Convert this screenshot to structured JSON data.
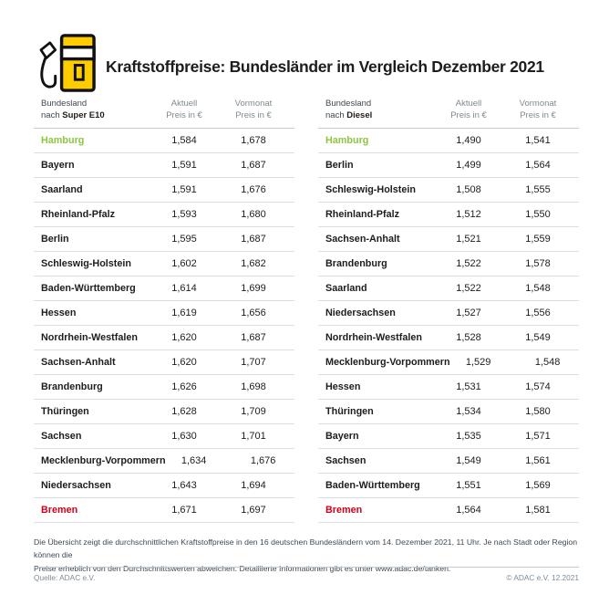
{
  "header": {
    "title": "Kraftstoffpreise: Bundesländer im Vergleich Dezember 2021",
    "icon": "fuel-pump-icon"
  },
  "colors": {
    "accent_yellow": "#FFCC00",
    "cheapest_green": "#8DC63F",
    "most_expensive_red": "#D0021B"
  },
  "tables": [
    {
      "header": {
        "col1_line1": "Bundesland",
        "col1_prefix": "nach ",
        "col1_fuel": "Super E10",
        "col2_line1": "Aktuell",
        "col2_line2": "Preis in €",
        "col3_line1": "Vormonat",
        "col3_line2": "Preis in €"
      },
      "rows": [
        {
          "state": "Hamburg",
          "current": "1,584",
          "previous": "1,678",
          "highlight": "green"
        },
        {
          "state": "Bayern",
          "current": "1,591",
          "previous": "1,687",
          "highlight": ""
        },
        {
          "state": "Saarland",
          "current": "1,591",
          "previous": "1,676",
          "highlight": ""
        },
        {
          "state": "Rheinland-Pfalz",
          "current": "1,593",
          "previous": "1,680",
          "highlight": ""
        },
        {
          "state": "Berlin",
          "current": "1,595",
          "previous": "1,687",
          "highlight": ""
        },
        {
          "state": "Schleswig-Holstein",
          "current": "1,602",
          "previous": "1,682",
          "highlight": ""
        },
        {
          "state": "Baden-Württemberg",
          "current": "1,614",
          "previous": "1,699",
          "highlight": ""
        },
        {
          "state": "Hessen",
          "current": "1,619",
          "previous": "1,656",
          "highlight": ""
        },
        {
          "state": "Nordrhein-Westfalen",
          "current": "1,620",
          "previous": "1,687",
          "highlight": ""
        },
        {
          "state": "Sachsen-Anhalt",
          "current": "1,620",
          "previous": "1,707",
          "highlight": ""
        },
        {
          "state": "Brandenburg",
          "current": "1,626",
          "previous": "1,698",
          "highlight": ""
        },
        {
          "state": "Thüringen",
          "current": "1,628",
          "previous": "1,709",
          "highlight": ""
        },
        {
          "state": "Sachsen",
          "current": "1,630",
          "previous": "1,701",
          "highlight": ""
        },
        {
          "state": "Mecklenburg-Vorpommern",
          "current": "1,634",
          "previous": "1,676",
          "highlight": ""
        },
        {
          "state": "Niedersachsen",
          "current": "1,643",
          "previous": "1,694",
          "highlight": ""
        },
        {
          "state": "Bremen",
          "current": "1,671",
          "previous": "1,697",
          "highlight": "red"
        }
      ]
    },
    {
      "header": {
        "col1_line1": "Bundesland",
        "col1_prefix": "nach ",
        "col1_fuel": "Diesel",
        "col2_line1": "Aktuell",
        "col2_line2": "Preis in €",
        "col3_line1": "Vormonat",
        "col3_line2": "Preis in €"
      },
      "rows": [
        {
          "state": "Hamburg",
          "current": "1,490",
          "previous": "1,541",
          "highlight": "green"
        },
        {
          "state": "Berlin",
          "current": "1,499",
          "previous": "1,564",
          "highlight": ""
        },
        {
          "state": "Schleswig-Holstein",
          "current": "1,508",
          "previous": "1,555",
          "highlight": ""
        },
        {
          "state": "Rheinland-Pfalz",
          "current": "1,512",
          "previous": "1,550",
          "highlight": ""
        },
        {
          "state": "Sachsen-Anhalt",
          "current": "1,521",
          "previous": "1,559",
          "highlight": ""
        },
        {
          "state": "Brandenburg",
          "current": "1,522",
          "previous": "1,578",
          "highlight": ""
        },
        {
          "state": "Saarland",
          "current": "1,522",
          "previous": "1,548",
          "highlight": ""
        },
        {
          "state": "Niedersachsen",
          "current": "1,527",
          "previous": "1,556",
          "highlight": ""
        },
        {
          "state": "Nordrhein-Westfalen",
          "current": "1,528",
          "previous": "1,549",
          "highlight": ""
        },
        {
          "state": "Mecklenburg-Vorpommern",
          "current": "1,529",
          "previous": "1,548",
          "highlight": ""
        },
        {
          "state": "Hessen",
          "current": "1,531",
          "previous": "1,574",
          "highlight": ""
        },
        {
          "state": "Thüringen",
          "current": "1,534",
          "previous": "1,580",
          "highlight": ""
        },
        {
          "state": "Bayern",
          "current": "1,535",
          "previous": "1,571",
          "highlight": ""
        },
        {
          "state": "Sachsen",
          "current": "1,549",
          "previous": "1,561",
          "highlight": ""
        },
        {
          "state": "Baden-Württemberg",
          "current": "1,551",
          "previous": "1,569",
          "highlight": ""
        },
        {
          "state": "Bremen",
          "current": "1,564",
          "previous": "1,581",
          "highlight": "red"
        }
      ]
    }
  ],
  "footer": {
    "note_line1": "Die Übersicht zeigt die durchschnittlichen Kraftstoffpreise in den 16 deutschen Bundesländern vom 14. Dezember 2021, 11 Uhr. Je nach Stadt oder Region können die",
    "note_line2": "Preise erheblich von den Durchschnittswerten abweichen. Detaillierte Informationen gibt es unter www.adac.de/tanken.",
    "source": "Quelle: ADAC e.V.",
    "copyright": "© ADAC e.V. 12.2021"
  },
  "chart_data": [
    {
      "type": "table",
      "title": "Bundesland nach Super E10 — Preis in €",
      "columns": [
        "Bundesland",
        "Aktuell Preis in €",
        "Vormonat Preis in €"
      ],
      "rows": [
        [
          "Hamburg",
          1.584,
          1.678
        ],
        [
          "Bayern",
          1.591,
          1.687
        ],
        [
          "Saarland",
          1.591,
          1.676
        ],
        [
          "Rheinland-Pfalz",
          1.593,
          1.68
        ],
        [
          "Berlin",
          1.595,
          1.687
        ],
        [
          "Schleswig-Holstein",
          1.602,
          1.682
        ],
        [
          "Baden-Württemberg",
          1.614,
          1.699
        ],
        [
          "Hessen",
          1.619,
          1.656
        ],
        [
          "Nordrhein-Westfalen",
          1.62,
          1.687
        ],
        [
          "Sachsen-Anhalt",
          1.62,
          1.707
        ],
        [
          "Brandenburg",
          1.626,
          1.698
        ],
        [
          "Thüringen",
          1.628,
          1.709
        ],
        [
          "Sachsen",
          1.63,
          1.701
        ],
        [
          "Mecklenburg-Vorpommern",
          1.634,
          1.676
        ],
        [
          "Niedersachsen",
          1.643,
          1.694
        ],
        [
          "Bremen",
          1.671,
          1.697
        ]
      ],
      "annotations": {
        "cheapest": "Hamburg",
        "most_expensive": "Bremen"
      }
    },
    {
      "type": "table",
      "title": "Bundesland nach Diesel — Preis in €",
      "columns": [
        "Bundesland",
        "Aktuell Preis in €",
        "Vormonat Preis in €"
      ],
      "rows": [
        [
          "Hamburg",
          1.49,
          1.541
        ],
        [
          "Berlin",
          1.499,
          1.564
        ],
        [
          "Schleswig-Holstein",
          1.508,
          1.555
        ],
        [
          "Rheinland-Pfalz",
          1.512,
          1.55
        ],
        [
          "Sachsen-Anhalt",
          1.521,
          1.559
        ],
        [
          "Brandenburg",
          1.522,
          1.578
        ],
        [
          "Saarland",
          1.522,
          1.548
        ],
        [
          "Niedersachsen",
          1.527,
          1.556
        ],
        [
          "Nordrhein-Westfalen",
          1.528,
          1.549
        ],
        [
          "Mecklenburg-Vorpommern",
          1.529,
          1.548
        ],
        [
          "Hessen",
          1.531,
          1.574
        ],
        [
          "Thüringen",
          1.534,
          1.58
        ],
        [
          "Bayern",
          1.535,
          1.571
        ],
        [
          "Sachsen",
          1.549,
          1.561
        ],
        [
          "Baden-Württemberg",
          1.551,
          1.569
        ],
        [
          "Bremen",
          1.564,
          1.581
        ]
      ],
      "annotations": {
        "cheapest": "Hamburg",
        "most_expensive": "Bremen"
      }
    }
  ]
}
